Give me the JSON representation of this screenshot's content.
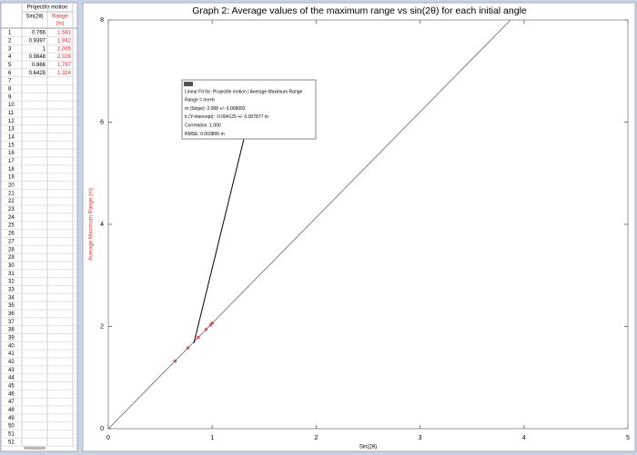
{
  "table": {
    "title": "Projectile motion",
    "x_header": "Sin(2θ)",
    "y_header": [
      "Range",
      "(m)"
    ],
    "row_numbers": [
      1,
      2,
      3,
      4,
      5,
      6,
      7,
      8,
      9,
      10,
      11,
      12,
      13,
      14,
      15,
      16,
      17,
      18,
      19,
      20,
      21,
      22,
      23,
      24,
      25,
      26,
      27,
      28,
      29,
      30,
      31,
      32,
      33,
      34,
      35,
      36,
      37,
      38,
      39,
      40,
      41,
      42,
      43,
      44,
      45,
      46,
      47,
      48,
      49,
      50,
      51,
      52
    ]
  },
  "chart_data": {
    "type": "scatter",
    "title": "Graph 2: Average values of the maximum range vs sin(2θ) for each initial angle",
    "x_label": "Sin(2θ)",
    "y_label": "Average Maximum Range (m)",
    "x": [
      0.766,
      0.9397,
      1,
      0.9848,
      0.866,
      0.6428
    ],
    "series": [
      {
        "color": "#e0302a",
        "values": [
          1.581,
          1.942,
          2.065,
          2.028,
          1.787,
          1.324
        ]
      }
    ],
    "xlim": [
      0,
      5
    ],
    "ylim": [
      0,
      8
    ],
    "xticks": [
      0,
      1,
      2,
      3,
      4,
      5
    ],
    "yticks": [
      0,
      2,
      4,
      6,
      8
    ],
    "fit": {
      "slope": 2.068,
      "intercept": -0.004125,
      "color": "#666666"
    },
    "annotations": [
      "Linear Fit for: Projectile motion | Average Maximum Range",
      "Range = mx+b",
      "m (Slope): 2.068 +/- 0.008993",
      "b (Y-Intercept): -0.004125 +/- 0.007877 m",
      "Correlation: 1.000",
      "RMSE: 0.003806 m"
    ]
  }
}
